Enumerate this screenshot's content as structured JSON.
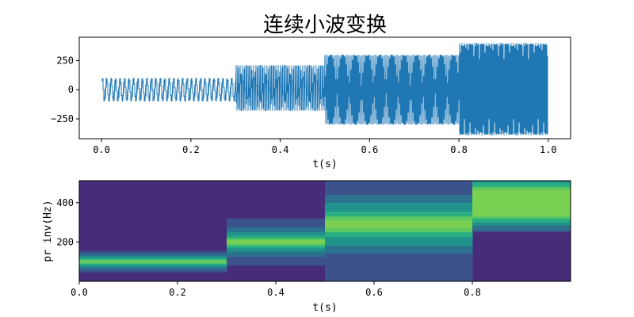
{
  "chart_data": [
    {
      "type": "line",
      "title": "连续小波变换",
      "xlabel": "t(s)",
      "ylabel": "",
      "xlim": [
        -0.05,
        1.05
      ],
      "ylim": [
        -420,
        450
      ],
      "xticks": [
        0.0,
        0.2,
        0.4,
        0.6,
        0.8,
        1.0
      ],
      "xtick_labels": [
        "0.0",
        "0.2",
        "0.4",
        "0.6",
        "0.8",
        "1.0"
      ],
      "yticks": [
        -250,
        0,
        250
      ],
      "ytick_labels": [
        "−250",
        "0",
        "250"
      ],
      "grid": false,
      "color": "#1f77b4",
      "series": [
        {
          "segments": [
            {
              "t_start": 0.0,
              "t_end": 0.3,
              "freq_hz": 100,
              "amplitude_min": -100,
              "amplitude_max": 100
            },
            {
              "t_start": 0.3,
              "t_end": 0.5,
              "freq_hz": 200,
              "amplitude_min": -180,
              "amplitude_max": 210
            },
            {
              "t_start": 0.5,
              "t_end": 0.8,
              "freq_hz": 300,
              "amplitude_min": -300,
              "amplitude_max": 300
            },
            {
              "t_start": 0.8,
              "t_end": 1.0,
              "freq_hz": 400,
              "amplitude_min": -390,
              "amplitude_max": 400
            }
          ]
        }
      ]
    },
    {
      "type": "heatmap",
      "title": "",
      "xlabel": "t(s)",
      "ylabel": "pr inv(Hz)",
      "xlim": [
        0.0,
        1.0
      ],
      "ylim": [
        0,
        512
      ],
      "xticks": [
        0.0,
        0.2,
        0.4,
        0.6,
        0.8
      ],
      "xtick_labels": [
        "0.0",
        "0.2",
        "0.4",
        "0.6",
        "0.8"
      ],
      "yticks": [
        200,
        400
      ],
      "ytick_labels": [
        "200",
        "400"
      ],
      "background_color": "#472c7a",
      "levels": [
        "#3b528b",
        "#2c728e",
        "#21918c",
        "#28ae80",
        "#5ec962",
        "#7ad151"
      ],
      "bands": [
        {
          "t_start": 0.0,
          "t_end": 0.3,
          "center_hz": 100,
          "half_widths_hz": [
            55,
            40,
            28,
            18,
            10,
            0
          ]
        },
        {
          "t_start": 0.3,
          "t_end": 0.5,
          "center_hz": 200,
          "half_widths_hz": [
            120,
            75,
            50,
            32,
            18,
            8
          ]
        },
        {
          "t_start": 0.5,
          "t_end": 0.8,
          "center_hz": 290,
          "half_widths_hz": [
            320,
            150,
            110,
            65,
            40,
            20
          ]
        },
        {
          "t_start": 0.8,
          "t_end": 1.0,
          "center_hz": 400,
          "half_widths_hz": [
            150,
            140,
            115,
            100,
            80,
            65
          ]
        }
      ]
    }
  ]
}
